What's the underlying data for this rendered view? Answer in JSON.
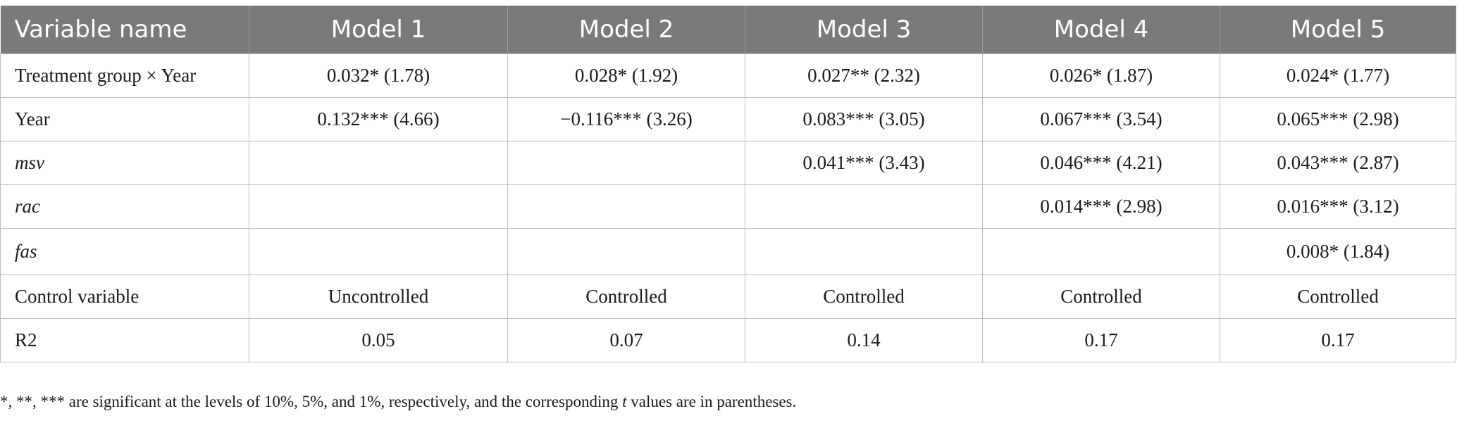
{
  "table": {
    "headers": [
      "Variable name",
      "Model 1",
      "Model 2",
      "Model 3",
      "Model 4",
      "Model 5"
    ],
    "rows": [
      {
        "label": "Treatment group × Year",
        "italic": false,
        "cells": [
          "0.032* (1.78)",
          "0.028* (1.92)",
          "0.027** (2.32)",
          "0.026* (1.87)",
          "0.024* (1.77)"
        ]
      },
      {
        "label": "Year",
        "italic": false,
        "cells": [
          "0.132*** (4.66)",
          "−0.116*** (3.26)",
          "0.083*** (3.05)",
          "0.067*** (3.54)",
          "0.065*** (2.98)"
        ]
      },
      {
        "label": "msv",
        "italic": true,
        "cells": [
          "",
          "",
          "0.041*** (3.43)",
          "0.046*** (4.21)",
          "0.043*** (2.87)"
        ]
      },
      {
        "label": "rac",
        "italic": true,
        "cells": [
          "",
          "",
          "",
          "0.014*** (2.98)",
          "0.016*** (3.12)"
        ]
      },
      {
        "label": "fas",
        "italic": true,
        "cells": [
          "",
          "",
          "",
          "",
          "0.008* (1.84)"
        ]
      },
      {
        "label": "Control variable",
        "italic": false,
        "cells": [
          "Uncontrolled",
          "Controlled",
          "Controlled",
          "Controlled",
          "Controlled"
        ]
      },
      {
        "label": "R2",
        "italic": false,
        "cells": [
          "0.05",
          "0.07",
          "0.14",
          "0.17",
          "0.17"
        ]
      }
    ]
  },
  "note": {
    "before": "*, **, *** are significant at the levels of 10%, 5%, and 1%, respectively, and the corresponding ",
    "italic": "t",
    "after": " values are in parentheses."
  }
}
